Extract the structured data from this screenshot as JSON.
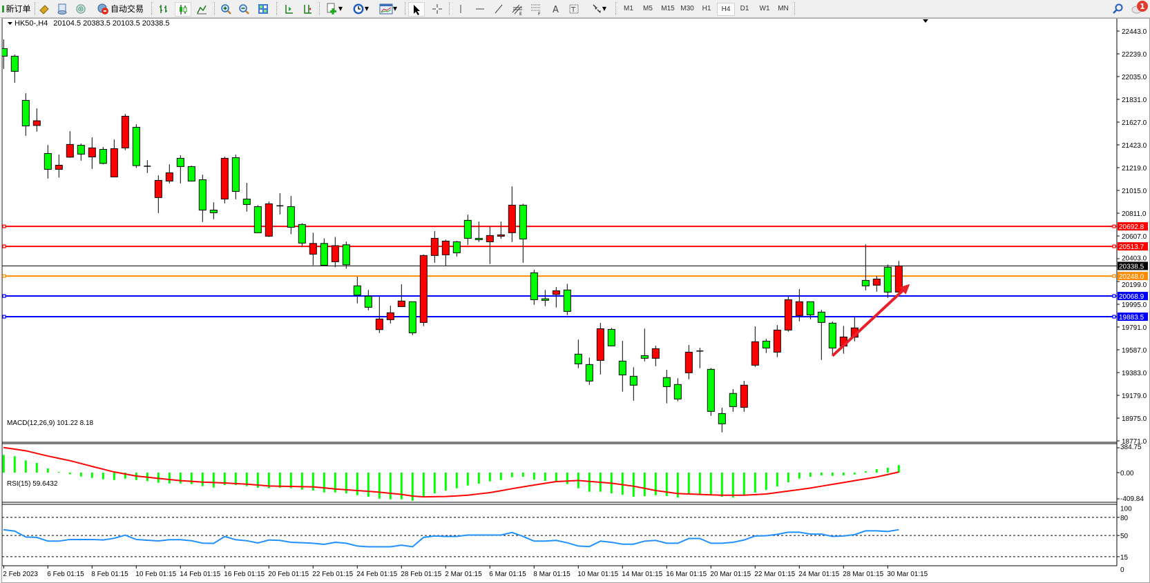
{
  "toolbar": {
    "new_order_label": "新订单",
    "auto_trade_label": "自动交易",
    "timeframes": [
      "M1",
      "M5",
      "M15",
      "M30",
      "H1",
      "H4",
      "D1",
      "W1",
      "MN"
    ],
    "active_timeframe": "H4",
    "notification_count": "1",
    "icons": [
      "new-order-icon",
      "gold-icon",
      "accounts-icon",
      "signals-icon",
      "auto-trade-icon",
      "bar-chart-icon",
      "candlestick-icon",
      "line-chart-icon",
      "zoom-in-icon",
      "zoom-out-icon",
      "tile-windows-icon",
      "auto-scroll-icon",
      "chart-shift-icon",
      "indicators-icon",
      "periods-icon",
      "templates-icon",
      "cursor-icon",
      "crosshair-icon",
      "vertical-line-icon",
      "horizontal-line-icon",
      "trendline-icon",
      "equidistant-channel-icon",
      "fibonacci-icon",
      "text-icon",
      "text-label-icon",
      "arrows-icon",
      "search-icon",
      "notifications-icon"
    ]
  },
  "chart_data": {
    "type": "candlestick",
    "title": "HK50-,H4",
    "ohlc_readout": "20104.5 20383.5 20103.5 20338.5",
    "colors": {
      "bull": "#ff0000",
      "bear": "#00ff00",
      "grid": "none"
    },
    "price_ticks": [
      "22443.0",
      "22239.0",
      "22035.0",
      "21831.0",
      "21627.0",
      "21423.0",
      "21219.0",
      "21015.0",
      "20811.0",
      "20607.0",
      "20403.0",
      "20199.0",
      "19995.0",
      "19791.0",
      "19587.0",
      "19383.0",
      "19179.0",
      "18975.0",
      "18771.0"
    ],
    "ylim": [
      18771,
      22443
    ],
    "time_labels": [
      "2 Feb 2023",
      "6 Feb 01:15",
      "8 Feb 01:15",
      "10 Feb 01:15",
      "14 Feb 01:15",
      "16 Feb 01:15",
      "20 Feb 01:15",
      "22 Feb 01:15",
      "24 Feb 01:15",
      "28 Feb 01:15",
      "2 Mar 01:15",
      "6 Mar 01:15",
      "8 Mar 01:15",
      "10 Mar 01:15",
      "14 Mar 01:15",
      "16 Mar 01:15",
      "20 Mar 01:15",
      "22 Mar 01:15",
      "24 Mar 01:15",
      "28 Mar 01:15",
      "30 Mar 01:15"
    ],
    "candles": [
      [
        22286,
        22368,
        22104,
        22218
      ],
      [
        22218,
        22232,
        21980,
        22082
      ],
      [
        21822,
        21886,
        21504,
        21593
      ],
      [
        21597,
        21750,
        21542,
        21639
      ],
      [
        21346,
        21422,
        21121,
        21204
      ],
      [
        21204,
        21336,
        21130,
        21241
      ],
      [
        21313,
        21546,
        21307,
        21427
      ],
      [
        21420,
        21435,
        21282,
        21340
      ],
      [
        21315,
        21490,
        21208,
        21396
      ],
      [
        21383,
        21404,
        21249,
        21257
      ],
      [
        21136,
        21472,
        21136,
        21389
      ],
      [
        21396,
        21700,
        21375,
        21680
      ],
      [
        21581,
        21608,
        21216,
        21237
      ],
      [
        21232,
        21286,
        21171,
        21232
      ],
      [
        20951,
        21150,
        20812,
        21105
      ],
      [
        21099,
        21249,
        21078,
        21173
      ],
      [
        21303,
        21330,
        21078,
        21229
      ],
      [
        21229,
        21237,
        21099,
        21099
      ],
      [
        21111,
        21156,
        20732,
        20839
      ],
      [
        20839,
        20909,
        20757,
        20815
      ],
      [
        20938,
        21317,
        20899,
        21303
      ],
      [
        21309,
        21336,
        20936,
        21006
      ],
      [
        20938,
        21082,
        20825,
        20889
      ],
      [
        20870,
        20883,
        20636,
        20636
      ],
      [
        20605,
        20915,
        20598,
        20895
      ],
      [
        20877,
        20990,
        20800,
        20877
      ],
      [
        20870,
        20965,
        20623,
        20685
      ],
      [
        20710,
        20722,
        20509,
        20543
      ],
      [
        20444,
        20636,
        20345,
        20540
      ],
      [
        20540,
        20586,
        20339,
        20345
      ],
      [
        20376,
        20598,
        20327,
        20520
      ],
      [
        20528,
        20557,
        20314,
        20349
      ],
      [
        20160,
        20242,
        20003,
        20077
      ],
      [
        20067,
        20123,
        19941,
        19968
      ],
      [
        19768,
        20067,
        19737,
        19863
      ],
      [
        19857,
        19982,
        19823,
        19919
      ],
      [
        19974,
        20174,
        19974,
        20024
      ],
      [
        20018,
        20018,
        19718,
        19739
      ],
      [
        19832,
        20440,
        19799,
        20432
      ],
      [
        20432,
        20650,
        20367,
        20586
      ],
      [
        20438,
        20574,
        20339,
        20561
      ],
      [
        20555,
        20563,
        20423,
        20456
      ],
      [
        20747,
        20798,
        20526,
        20586
      ],
      [
        20586,
        20736,
        20553,
        20574
      ],
      [
        20555,
        20695,
        20355,
        20611
      ],
      [
        20605,
        20736,
        20582,
        20617
      ],
      [
        20636,
        21051,
        20553,
        20883
      ],
      [
        20883,
        20895,
        20367,
        20580
      ],
      [
        20277,
        20304,
        19990,
        20036
      ],
      [
        20044,
        20123,
        19978,
        20030
      ],
      [
        20083,
        20149,
        19966,
        20116
      ],
      [
        20123,
        20178,
        19898,
        19931
      ],
      [
        19548,
        19678,
        19422,
        19461
      ],
      [
        19455,
        19517,
        19273,
        19307
      ],
      [
        19492,
        19828,
        19366,
        19776
      ],
      [
        19770,
        19783,
        19622,
        19622
      ],
      [
        19486,
        19667,
        19212,
        19362
      ],
      [
        19350,
        19430,
        19131,
        19270
      ],
      [
        19535,
        19776,
        19484,
        19511
      ],
      [
        19511,
        19624,
        19440,
        19597
      ],
      [
        19338,
        19408,
        19107,
        19257
      ],
      [
        19276,
        19332,
        19125,
        19146
      ],
      [
        19381,
        19630,
        19323,
        19566
      ],
      [
        19576,
        19605,
        19422,
        19576
      ],
      [
        19412,
        19424,
        18995,
        19035
      ],
      [
        19016,
        19068,
        18847,
        18924
      ],
      [
        19196,
        19235,
        19032,
        19078
      ],
      [
        19072,
        19309,
        19032,
        19270
      ],
      [
        19449,
        19797,
        19434,
        19659
      ],
      [
        19665,
        19686,
        19558,
        19603
      ],
      [
        19566,
        19809,
        19521,
        19764
      ],
      [
        19764,
        20071,
        19749,
        20036
      ],
      [
        19894,
        20131,
        19842,
        20018
      ],
      [
        20018,
        20018,
        19861,
        19900
      ],
      [
        19925,
        19945,
        19496,
        19832
      ],
      [
        19826,
        19840,
        19533,
        19603
      ],
      [
        19620,
        19801,
        19552,
        19702
      ],
      [
        19700,
        19885,
        19663,
        19783
      ],
      [
        20209,
        20532,
        20120,
        20160
      ],
      [
        20166,
        20248,
        20108,
        20221
      ],
      [
        20327,
        20351,
        20052,
        20104
      ],
      [
        20104.5,
        20383.5,
        20103.5,
        20338.5
      ]
    ],
    "price_lines": [
      {
        "value": 20692.8,
        "label": "20692.8",
        "color": "#ff0000"
      },
      {
        "value": 20513.7,
        "label": "20513.7",
        "color": "#ff0000"
      },
      {
        "value": 20248.0,
        "label": "20248.0",
        "color": "#ff8c00"
      },
      {
        "value": 20068.9,
        "label": "20068.9",
        "color": "#0000ff"
      },
      {
        "value": 19883.5,
        "label": "19883.5",
        "color": "#0000ff"
      }
    ],
    "current_price": {
      "value": 20338.5,
      "label": "20338.5",
      "color": "#000000"
    },
    "annotation_arrow": {
      "color": "#e8202a",
      "from": {
        "bar": 75,
        "price": 19533
      },
      "to": {
        "bar": 82,
        "price": 20176
      }
    },
    "macd": {
      "label": "MACD(12,26,9) 101.22 8.18",
      "ticks": [
        "384.75",
        "0.00",
        "-409.84"
      ],
      "ylim": [
        -409.84,
        384.75
      ],
      "histogram_color": "#00ff00",
      "signal_color": "#ff0000",
      "histogram": [
        240,
        222,
        165,
        131,
        56,
        9,
        -22,
        -53,
        -72,
        -90,
        -100,
        -81,
        -100,
        -115,
        -137,
        -147,
        -147,
        -156,
        -184,
        -203,
        -168,
        -168,
        -184,
        -206,
        -212,
        -206,
        -212,
        -231,
        -243,
        -268,
        -268,
        -281,
        -306,
        -328,
        -353,
        -362,
        -362,
        -381,
        -337,
        -281,
        -243,
        -212,
        -175,
        -150,
        -119,
        -100,
        -62,
        -56,
        -94,
        -112,
        -131,
        -156,
        -212,
        -260,
        -259,
        -281,
        -300,
        -328,
        -318,
        -306,
        -318,
        -337,
        -293,
        -293,
        -303,
        -328,
        -337,
        -303,
        -271,
        -234,
        -187,
        -131,
        -81,
        -56,
        -37,
        -44,
        -37,
        -25,
        19,
        47,
        66,
        101.22
      ],
      "signal": [
        340,
        318,
        296,
        260,
        225,
        193,
        162,
        123,
        84,
        46,
        9,
        -19,
        -47,
        -62,
        -78,
        -93,
        -109,
        -118,
        -128,
        -134,
        -140,
        -148,
        -156,
        -168,
        -181,
        -184,
        -187,
        -190,
        -193,
        -207,
        -222,
        -232,
        -243,
        -254,
        -265,
        -280,
        -296,
        -318,
        -328,
        -326,
        -324,
        -315,
        -306,
        -288,
        -271,
        -245,
        -218,
        -193,
        -168,
        -145,
        -122,
        -114,
        -106,
        -119,
        -131,
        -144,
        -164,
        -184,
        -213,
        -243,
        -263,
        -284,
        -290,
        -296,
        -301,
        -306,
        -306,
        -306,
        -298,
        -290,
        -270,
        -250,
        -230,
        -209,
        -184,
        -159,
        -134,
        -109,
        -84,
        -59,
        -26,
        8.18
      ]
    },
    "rsi": {
      "label": "RSI(15) 59.6432",
      "ticks": [
        "100",
        "80",
        "50",
        "15",
        "0"
      ],
      "levels": [
        80,
        50,
        15
      ],
      "ylim": [
        0,
        100
      ],
      "color": "#1e90ff",
      "values": [
        59.6,
        57.3,
        47.5,
        46.9,
        40.7,
        40.7,
        43.4,
        43.4,
        43.4,
        42.6,
        45.4,
        50.5,
        43.4,
        42.2,
        41.1,
        43,
        43,
        41.4,
        37.3,
        36.9,
        48.3,
        43,
        41.4,
        37.6,
        42.6,
        41.9,
        38.8,
        38,
        37.2,
        35.3,
        38.8,
        37.2,
        32.6,
        31.4,
        31.4,
        31.4,
        34.1,
        31.4,
        46.9,
        49.2,
        48.5,
        48.5,
        50.8,
        50.8,
        50.8,
        50.8,
        55,
        48.5,
        40.7,
        40.7,
        41.9,
        38,
        32.6,
        31.6,
        40.7,
        38.8,
        35.7,
        35.7,
        40.7,
        41.9,
        37.2,
        37.2,
        45,
        45,
        37.2,
        37.2,
        38.8,
        42.6,
        49.2,
        49.6,
        51.9,
        55.4,
        55.4,
        52.3,
        52.3,
        48.5,
        49.2,
        51.5,
        57.7,
        57.7,
        56.6,
        59.6432
      ]
    }
  }
}
